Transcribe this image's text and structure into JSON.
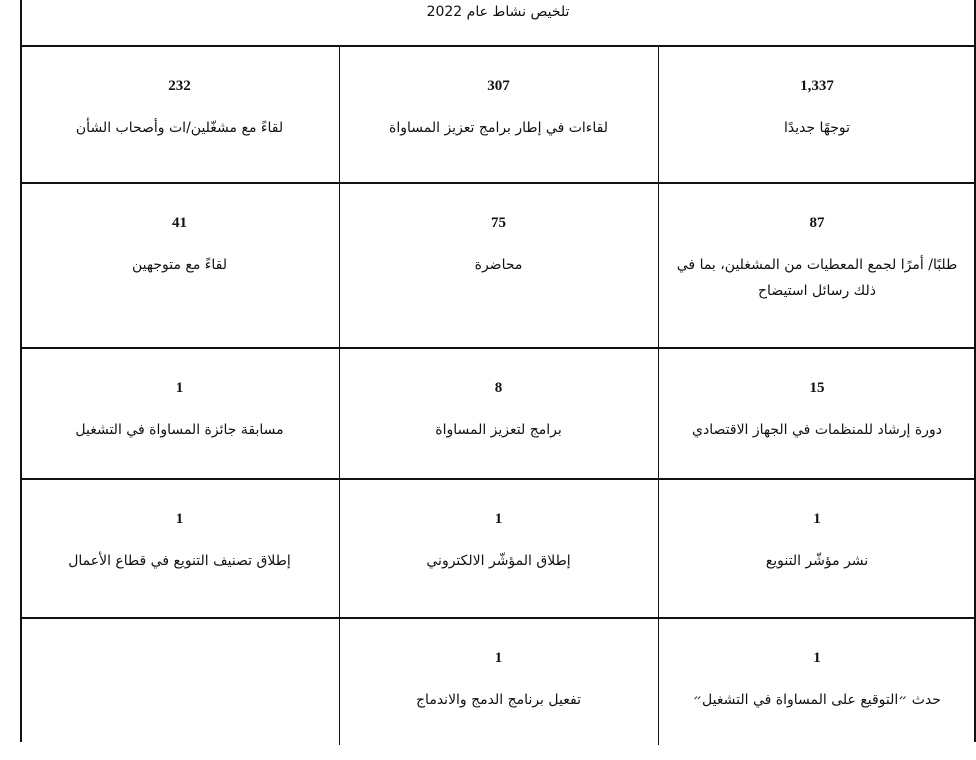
{
  "title": "تلخيص نشاط عام 2022",
  "rows": [
    [
      {
        "value": "1,337",
        "label": "توجهًا جديدًا"
      },
      {
        "value": "307",
        "label": "لقاءات في إطار برامج تعزيز المساواة"
      },
      {
        "value": "232",
        "label": "لقاءً مع مشغّلين/ات وأصحاب الشأن"
      }
    ],
    [
      {
        "value": "87",
        "label": "طلبًا/ أمرًا لجمع المعطيات من المشغلين، بما في ذلك رسائل استيضاح"
      },
      {
        "value": "75",
        "label": "محاضرة"
      },
      {
        "value": "41",
        "label": "لقاءً مع متوجهين"
      }
    ],
    [
      {
        "value": "15",
        "label": "دورة إرشاد للمنظمات في الجهاز الاقتصادي"
      },
      {
        "value": "8",
        "label": "برامج لتعزيز المساواة"
      },
      {
        "value": "1",
        "label": "مسابقة جائزة المساواة في التشغيل"
      }
    ],
    [
      {
        "value": "1",
        "label": "نشر مؤشّر التنويع"
      },
      {
        "value": "1",
        "label": "إطلاق المؤشّر الالكتروني"
      },
      {
        "value": "1",
        "label": "إطلاق تصنيف التنويع في قطاع الأعمال"
      }
    ],
    [
      {
        "value": "1",
        "label": "حدث ״التوقيع على المساواة في التشغيل״"
      },
      {
        "value": "1",
        "label": "تفعيل برنامج الدمج والاندماج"
      },
      {
        "value": "",
        "label": ""
      }
    ]
  ]
}
